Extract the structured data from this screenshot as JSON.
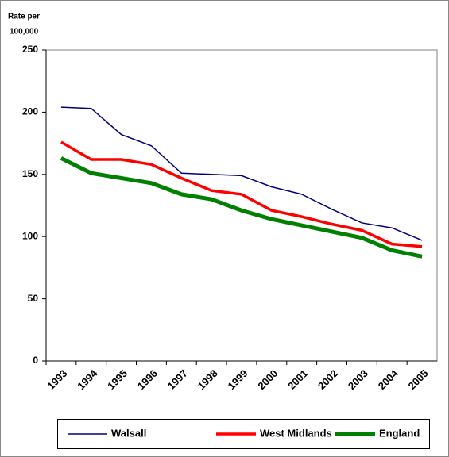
{
  "chart_data": {
    "type": "line",
    "ylabel_lines": [
      "Rate per",
      "100,000"
    ],
    "categories": [
      "1993",
      "1994",
      "1995",
      "1996",
      "1997",
      "1998",
      "1999",
      "2000",
      "2001",
      "2002",
      "2003",
      "2004",
      "2005"
    ],
    "series": [
      {
        "name": "Walsall",
        "color": "#000080",
        "width": 1.5,
        "values": [
          204,
          203,
          182,
          173,
          151,
          150,
          149,
          140,
          134,
          122,
          111,
          107,
          97
        ]
      },
      {
        "name": "West Midlands",
        "color": "#ff0000",
        "width": 3.5,
        "values": [
          176,
          162,
          162,
          158,
          147,
          137,
          134,
          121,
          116,
          110,
          105,
          94,
          92
        ]
      },
      {
        "name": "England",
        "color": "#008000",
        "width": 5,
        "values": [
          163,
          151,
          147,
          143,
          134,
          130,
          121,
          114,
          109,
          104,
          99,
          89,
          84
        ]
      }
    ],
    "ylim": [
      0,
      250
    ],
    "yticks": [
      0,
      50,
      100,
      150,
      200,
      250
    ],
    "grid": false,
    "legend": "bottom"
  }
}
